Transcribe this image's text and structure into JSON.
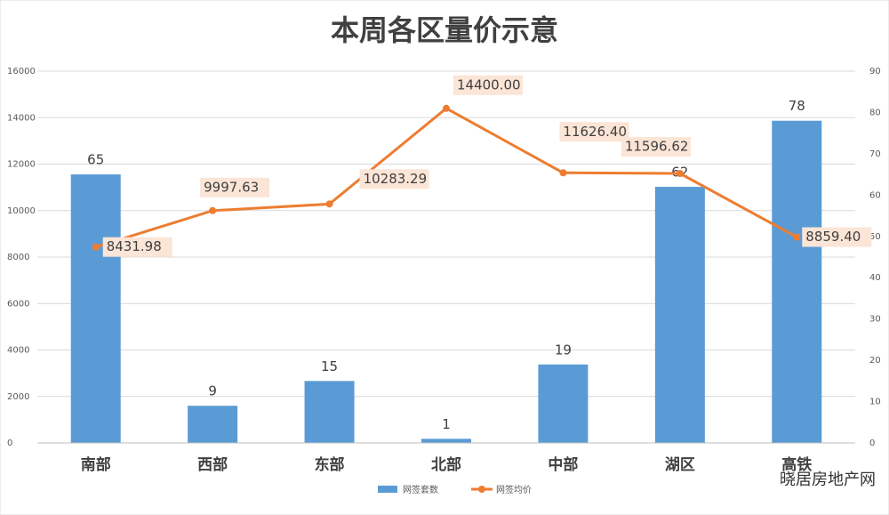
{
  "chart_data": {
    "type": "bar_line",
    "title": "本周各区量价示意",
    "categories": [
      "南部",
      "西部",
      "东部",
      "北部",
      "中部",
      "湖区",
      "高铁"
    ],
    "series": [
      {
        "name": "网签套数",
        "type": "bar",
        "axis": "y2",
        "color": "#5b9bd5",
        "values": [
          65,
          9,
          15,
          1,
          19,
          62,
          78
        ]
      },
      {
        "name": "网签均价",
        "type": "line",
        "axis": "y",
        "color": "#ed7d31",
        "values": [
          8431.98,
          9997.63,
          10283.29,
          14400,
          11626.4,
          11596.62,
          8859.4
        ],
        "value_labels": [
          "8431.98",
          "9997.63",
          "10283.29",
          "14400.00",
          "11626.40",
          "11596.62",
          "8859.40"
        ]
      }
    ],
    "ylim": [
      0,
      16000
    ],
    "yticks": [
      0,
      2000,
      4000,
      6000,
      8000,
      10000,
      12000,
      14000,
      16000
    ],
    "y2lim": [
      0,
      90
    ],
    "y2ticks": [
      0,
      10,
      20,
      30,
      40,
      50,
      60,
      70,
      80,
      90
    ],
    "grid": true,
    "legend": "bottom",
    "brand": "晓居房地产网"
  }
}
